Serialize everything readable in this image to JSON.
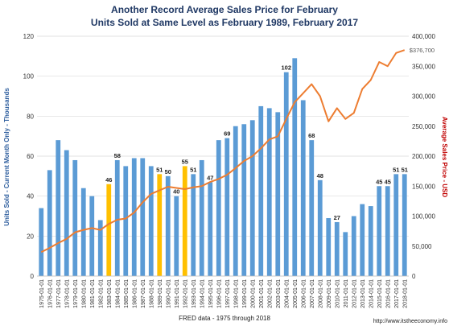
{
  "chart_data": {
    "type": "bar",
    "title": "Another Record Average Sales Price for February",
    "subtitle": "Units Sold at Same Level as February  1989, February 2017",
    "xlabel": "FRED data - 1975 through 2018",
    "ylabel": "Units Sold - Current Month Only - Thousands",
    "y2label": "Average Sales Price - USD",
    "source": "http://www.itstheeconomy.info",
    "ylim": [
      0,
      120
    ],
    "y2lim": [
      0,
      400000
    ],
    "yticks": [
      "0",
      "20",
      "40",
      "60",
      "80",
      "100",
      "120"
    ],
    "y2ticks": [
      "0",
      "50,000",
      "100,000",
      "150,000",
      "200,000",
      "250,000",
      "300,000",
      "350,000",
      "400,000"
    ],
    "grid": true,
    "colors": {
      "bar": "#5b9bd5",
      "highlight": "#ffc000",
      "line": "#ed7d31",
      "title": "#1f3864",
      "right_axis": "#c00000"
    },
    "categories": [
      "1975-01-01",
      "1976-01-01",
      "1977-01-01",
      "1978-01-01",
      "1979-01-01",
      "1980-01-01",
      "1981-01-01",
      "1982-01-01",
      "1983-01-01",
      "1984-01-01",
      "1985-01-01",
      "1986-01-01",
      "1987-01-01",
      "1988-01-01",
      "1989-01-01",
      "1990-01-01",
      "1991-01-01",
      "1992-01-01",
      "1993-01-01",
      "1994-01-01",
      "1995-01-01",
      "1996-01-01",
      "1997-01-01",
      "1998-01-01",
      "1999-01-01",
      "2000-01-01",
      "2001-01-01",
      "2002-01-01",
      "2003-01-01",
      "2004-01-01",
      "2005-01-01",
      "2006-01-01",
      "2007-01-01",
      "2008-01-01",
      "2009-01-01",
      "2010-01-01",
      "2011-01-01",
      "2012-01-01",
      "2013-01-01",
      "2014-01-01",
      "2015-01-01",
      "2016-01-01",
      "2017-01-01",
      "2018-01-01"
    ],
    "series": [
      {
        "type": "bar",
        "axis": "left",
        "values": [
          34,
          53,
          68,
          63,
          58,
          44,
          40,
          28,
          46,
          58,
          55,
          59,
          59,
          55,
          51,
          50,
          40,
          55,
          51,
          58,
          47,
          68,
          69,
          75,
          76,
          78,
          85,
          84,
          82,
          102,
          109,
          88,
          68,
          48,
          29,
          27,
          22,
          30,
          36,
          35,
          45,
          45,
          51,
          51
        ],
        "highlight_indices": [
          8,
          14,
          17
        ],
        "labels": [
          {
            "index": 8,
            "text": "46"
          },
          {
            "index": 9,
            "text": "58"
          },
          {
            "index": 14,
            "text": "51"
          },
          {
            "index": 15,
            "text": "50"
          },
          {
            "index": 16,
            "text": "40"
          },
          {
            "index": 17,
            "text": "55"
          },
          {
            "index": 18,
            "text": "51"
          },
          {
            "index": 20,
            "text": "47"
          },
          {
            "index": 22,
            "text": "69"
          },
          {
            "index": 29,
            "text": "102"
          },
          {
            "index": 32,
            "text": "68"
          },
          {
            "index": 33,
            "text": "48"
          },
          {
            "index": 35,
            "text": "27"
          },
          {
            "index": 40,
            "text": "45"
          },
          {
            "index": 41,
            "text": "45"
          },
          {
            "index": 42,
            "text": "51"
          },
          {
            "index": 43,
            "text": "51"
          }
        ]
      },
      {
        "type": "line",
        "axis": "right",
        "values": [
          40000,
          47000,
          55000,
          62000,
          73000,
          77000,
          80000,
          77000,
          87000,
          94000,
          96000,
          106000,
          123000,
          137000,
          143000,
          149000,
          147000,
          145000,
          148000,
          150000,
          157000,
          162000,
          169000,
          180000,
          192000,
          200000,
          213000,
          228000,
          233000,
          262000,
          290000,
          305000,
          320000,
          300000,
          258000,
          280000,
          262000,
          272000,
          312000,
          327000,
          357000,
          350000,
          372000,
          377000
        ],
        "end_label": "$376,700"
      }
    ]
  }
}
